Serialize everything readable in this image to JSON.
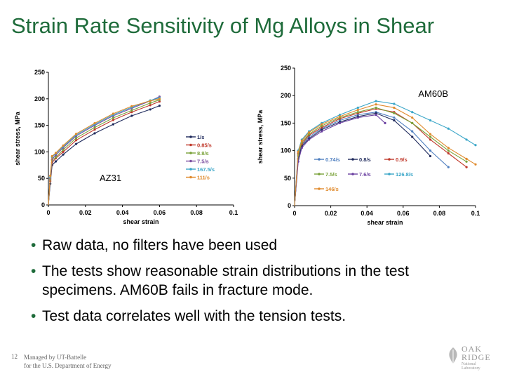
{
  "slide": {
    "title": "Strain Rate Sensitivity of Mg Alloys in Shear",
    "bullets": [
      "Raw data, no filters have been used",
      "The tests show reasonable strain distributions in the test specimens. AM60B fails in fracture mode.",
      "Test data correlates well with the tension tests."
    ],
    "page_number": "12",
    "footer_lines": [
      "Managed by UT-Battelle",
      "for the U.S. Department of Energy"
    ],
    "logo_lines": [
      "OAK",
      "RIDGE",
      "National Laboratory"
    ]
  },
  "colors": {
    "title": "#1e6b3a",
    "bullet": "#1e6b3a"
  },
  "chart_data": [
    {
      "type": "line",
      "annotation": "AZ31",
      "xlabel": "shear strain",
      "ylabel": "shear stress, MPa",
      "xlim": [
        0,
        0.1
      ],
      "ylim": [
        0,
        250
      ],
      "xticks": [
        "0",
        "0.02",
        "0.04",
        "0.06",
        "0.08",
        "0.1"
      ],
      "yticks": [
        "0",
        "50",
        "100",
        "150",
        "200",
        "250"
      ],
      "legend_position": "right",
      "series": [
        {
          "name": "1/s",
          "color": "#1f2a5c",
          "x": [
            0,
            0.001,
            0.002,
            0.004,
            0.008,
            0.015,
            0.025,
            0.035,
            0.045,
            0.055,
            0.06
          ],
          "y": [
            0,
            40,
            75,
            82,
            95,
            115,
            135,
            152,
            168,
            180,
            187
          ]
        },
        {
          "name": "0.85/s",
          "color": "#c0392b",
          "x": [
            0,
            0.001,
            0.002,
            0.004,
            0.008,
            0.015,
            0.025,
            0.035,
            0.045,
            0.055,
            0.06
          ],
          "y": [
            0,
            45,
            80,
            88,
            100,
            122,
            142,
            160,
            175,
            188,
            195
          ]
        },
        {
          "name": "8.8/s",
          "color": "#7aa23a",
          "x": [
            0,
            0.001,
            0.002,
            0.004,
            0.008,
            0.015,
            0.025,
            0.035,
            0.045,
            0.055,
            0.06
          ],
          "y": [
            0,
            48,
            84,
            90,
            104,
            126,
            146,
            164,
            178,
            192,
            198
          ]
        },
        {
          "name": "7.5/s",
          "color": "#7b4fa0",
          "x": [
            0,
            0.001,
            0.002,
            0.004,
            0.008,
            0.015,
            0.025,
            0.035,
            0.045,
            0.055,
            0.06
          ],
          "y": [
            0,
            50,
            86,
            94,
            108,
            130,
            150,
            168,
            182,
            196,
            204
          ]
        },
        {
          "name": "167.5/s",
          "color": "#3aa6c8",
          "x": [
            0,
            0.001,
            0.002,
            0.004,
            0.008,
            0.015,
            0.025,
            0.035,
            0.045,
            0.055,
            0.06
          ],
          "y": [
            0,
            52,
            90,
            97,
            110,
            132,
            152,
            170,
            184,
            197,
            202
          ]
        },
        {
          "name": "111/s",
          "color": "#e08a2c",
          "x": [
            0,
            0.001,
            0.002,
            0.004,
            0.008,
            0.015,
            0.025,
            0.035,
            0.045,
            0.055,
            0.06
          ],
          "y": [
            0,
            55,
            92,
            98,
            112,
            134,
            154,
            172,
            186,
            196,
            200
          ]
        }
      ]
    },
    {
      "type": "line",
      "annotation": "AM60B",
      "xlabel": "shear strain",
      "ylabel": "shear stress, MPa",
      "xlim": [
        0,
        0.1
      ],
      "ylim": [
        0,
        250
      ],
      "xticks": [
        "0",
        "0.02",
        "0.04",
        "0.06",
        "0.08",
        "0.1"
      ],
      "yticks": [
        "0",
        "50",
        "100",
        "150",
        "200",
        "250"
      ],
      "legend_position": "inside-bottom",
      "series": [
        {
          "name": "0.74/s",
          "color": "#4f7fc0",
          "x": [
            0,
            0.002,
            0.004,
            0.008,
            0.015,
            0.025,
            0.035,
            0.045,
            0.055,
            0.065,
            0.075,
            0.085
          ],
          "y": [
            0,
            90,
            110,
            125,
            140,
            155,
            165,
            170,
            160,
            135,
            100,
            70
          ]
        },
        {
          "name": "0.8/s",
          "color": "#1f2a5c",
          "x": [
            0,
            0.002,
            0.004,
            0.008,
            0.015,
            0.025,
            0.035,
            0.045,
            0.055,
            0.065,
            0.075
          ],
          "y": [
            0,
            85,
            108,
            122,
            138,
            152,
            162,
            168,
            155,
            125,
            90
          ]
        },
        {
          "name": "0.9/s",
          "color": "#c0392b",
          "x": [
            0,
            0.002,
            0.004,
            0.008,
            0.015,
            0.025,
            0.035,
            0.045,
            0.055,
            0.065,
            0.075,
            0.085,
            0.095
          ],
          "y": [
            0,
            95,
            112,
            128,
            142,
            158,
            168,
            176,
            170,
            150,
            120,
            95,
            70
          ]
        },
        {
          "name": "7.5/s",
          "color": "#7aa23a",
          "x": [
            0,
            0.002,
            0.004,
            0.008,
            0.015,
            0.025,
            0.035,
            0.045,
            0.055,
            0.065,
            0.075,
            0.085,
            0.095
          ],
          "y": [
            0,
            92,
            115,
            130,
            145,
            160,
            170,
            178,
            168,
            150,
            125,
            100,
            80
          ]
        },
        {
          "name": "7.6/s",
          "color": "#6a3fa0",
          "x": [
            0,
            0.002,
            0.004,
            0.008,
            0.015,
            0.025,
            0.035,
            0.045,
            0.05
          ],
          "y": [
            0,
            80,
            105,
            120,
            135,
            150,
            160,
            165,
            150
          ]
        },
        {
          "name": "126.8/s",
          "color": "#3aa6c8",
          "x": [
            0,
            0.002,
            0.004,
            0.008,
            0.015,
            0.025,
            0.035,
            0.045,
            0.055,
            0.065,
            0.075,
            0.085,
            0.095,
            0.1
          ],
          "y": [
            0,
            100,
            120,
            135,
            150,
            165,
            178,
            190,
            185,
            170,
            155,
            140,
            120,
            110
          ]
        },
        {
          "name": "146/s",
          "color": "#e08a2c",
          "x": [
            0,
            0.002,
            0.004,
            0.008,
            0.015,
            0.025,
            0.035,
            0.045,
            0.055,
            0.065,
            0.075,
            0.085,
            0.095,
            0.1
          ],
          "y": [
            0,
            98,
            118,
            133,
            148,
            162,
            174,
            184,
            178,
            160,
            130,
            105,
            85,
            75
          ]
        }
      ]
    }
  ]
}
